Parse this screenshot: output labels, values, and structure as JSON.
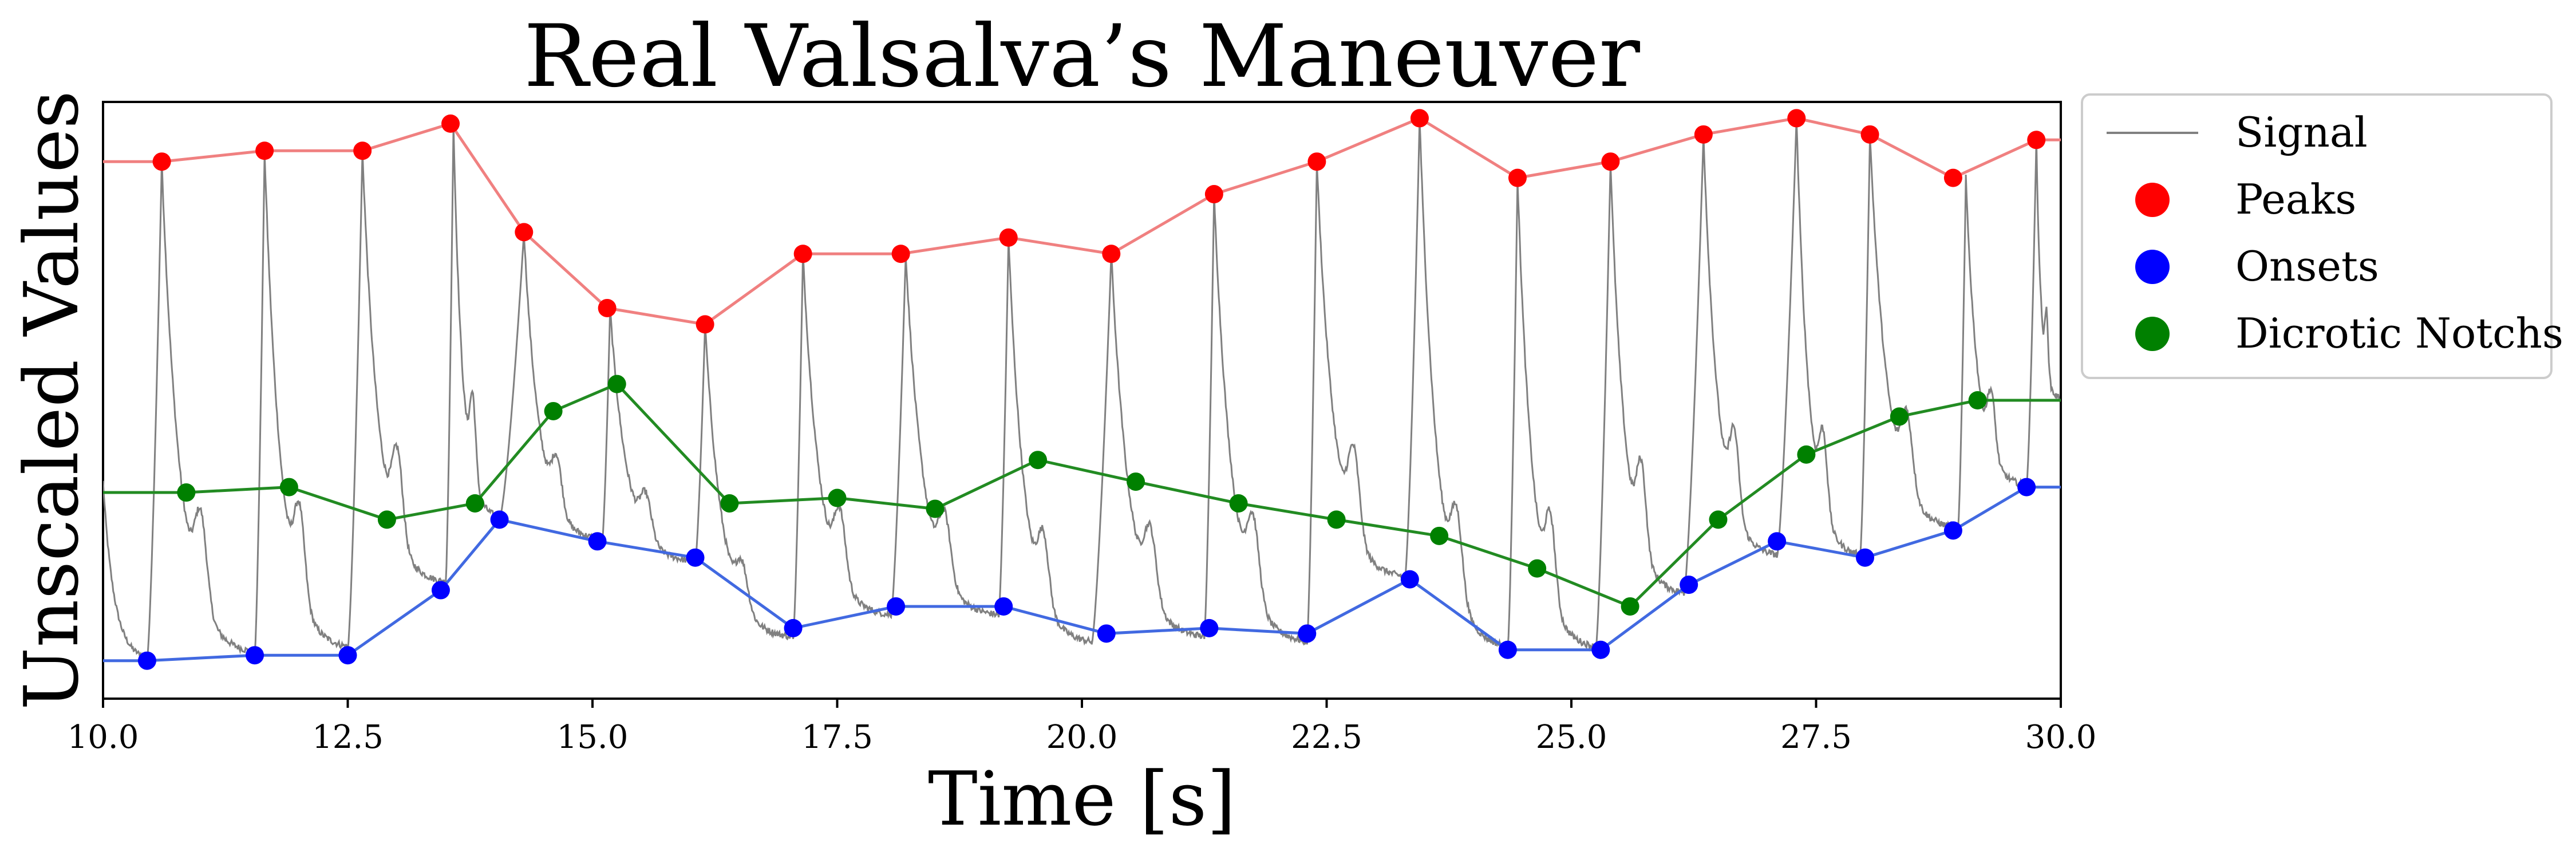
{
  "chart_data": {
    "type": "line",
    "title": "Real Valsalva’s Maneuver",
    "xlabel": "Time [s]",
    "ylabel": "Unscaled Values",
    "xlim": [
      10.0,
      30.0
    ],
    "ylim": [
      -0.05,
      1.05
    ],
    "x_ticks": [
      "10.0",
      "12.5",
      "15.0",
      "17.5",
      "20.0",
      "22.5",
      "25.0",
      "27.5",
      "30.0"
    ],
    "grid": false,
    "legend": {
      "position": "outside-top-right"
    },
    "series": [
      {
        "name": "Signal",
        "type": "line",
        "color": "#808080",
        "beats": [
          {
            "onset": 10.45,
            "peak": 10.6
          },
          {
            "onset": 11.55,
            "peak": 11.65
          },
          {
            "onset": 12.5,
            "peak": 12.65
          },
          {
            "onset": 13.5,
            "peak": 13.55
          },
          {
            "onset": 14.05,
            "peak": 14.3
          },
          {
            "onset": 15.1,
            "peak": 15.15
          },
          {
            "onset": 16.05,
            "peak": 16.15
          },
          {
            "onset": 17.05,
            "peak": 17.15
          },
          {
            "onset": 18.05,
            "peak": 18.2
          },
          {
            "onset": 19.15,
            "peak": 19.25
          },
          {
            "onset": 20.1,
            "peak": 20.3
          },
          {
            "onset": 21.25,
            "peak": 21.35
          },
          {
            "onset": 22.3,
            "peak": 22.4
          },
          {
            "onset": 23.3,
            "peak": 23.45
          },
          {
            "onset": 24.35,
            "peak": 24.45
          },
          {
            "onset": 25.25,
            "peak": 25.4
          },
          {
            "onset": 26.15,
            "peak": 26.35
          },
          {
            "onset": 27.1,
            "peak": 27.3
          },
          {
            "onset": 27.95,
            "peak": 28.05
          },
          {
            "onset": 28.95,
            "peak": 28.9
          },
          {
            "onset": 29.65,
            "peak": 29.75
          }
        ],
        "onset_values": [
          0.02,
          0.03,
          0.04,
          0.16,
          0.28,
          0.24,
          0.2,
          0.06,
          0.1,
          0.1,
          0.05,
          0.06,
          0.05,
          0.17,
          0.04,
          0.04,
          0.14,
          0.21,
          0.21,
          0.26,
          0.34
        ],
        "peak_values": [
          0.94,
          0.96,
          0.96,
          1.01,
          0.81,
          0.67,
          0.64,
          0.77,
          0.77,
          0.8,
          0.77,
          0.88,
          0.94,
          1.02,
          0.91,
          0.94,
          0.99,
          1.02,
          0.99,
          0.91,
          0.98
        ]
      },
      {
        "name": "Peaks",
        "type": "scatter+line",
        "color": "#ff0000",
        "line_color": "#f08080",
        "x": [
          10.6,
          11.65,
          12.65,
          13.55,
          14.3,
          15.15,
          16.15,
          17.15,
          18.15,
          19.25,
          20.3,
          21.35,
          22.4,
          23.45,
          24.45,
          25.4,
          26.35,
          27.3,
          28.05,
          28.9,
          29.75
        ],
        "y": [
          0.94,
          0.96,
          0.96,
          1.01,
          0.81,
          0.67,
          0.64,
          0.77,
          0.77,
          0.8,
          0.77,
          0.88,
          0.94,
          1.02,
          0.91,
          0.94,
          0.99,
          1.02,
          0.99,
          0.91,
          0.98
        ]
      },
      {
        "name": "Onsets",
        "type": "scatter+line",
        "color": "#0000ff",
        "line_color": "#4169e1",
        "x": [
          10.45,
          11.55,
          12.5,
          13.45,
          14.05,
          15.05,
          16.05,
          17.05,
          18.1,
          19.2,
          20.25,
          21.3,
          22.3,
          23.35,
          24.35,
          25.3,
          26.2,
          27.1,
          28.0,
          28.9,
          29.65
        ],
        "y": [
          0.02,
          0.03,
          0.03,
          0.15,
          0.28,
          0.24,
          0.21,
          0.08,
          0.12,
          0.12,
          0.07,
          0.08,
          0.07,
          0.17,
          0.04,
          0.04,
          0.16,
          0.24,
          0.21,
          0.26,
          0.34
        ]
      },
      {
        "name": "Dicrotic Notchs",
        "type": "scatter+line",
        "color": "#008000",
        "line_color": "#228b22",
        "x": [
          10.85,
          11.9,
          12.9,
          13.8,
          14.6,
          15.25,
          16.4,
          17.5,
          18.5,
          19.55,
          20.55,
          21.6,
          22.6,
          23.65,
          24.65,
          25.6,
          26.5,
          27.4,
          28.35,
          29.15
        ],
        "y": [
          0.33,
          0.34,
          0.28,
          0.31,
          0.48,
          0.53,
          0.31,
          0.32,
          0.3,
          0.39,
          0.35,
          0.31,
          0.28,
          0.25,
          0.19,
          0.12,
          0.28,
          0.4,
          0.47,
          0.5
        ]
      }
    ],
    "colors": {
      "signal": "#808080",
      "peaks": "#ff0000",
      "peaks_line": "#f08080",
      "onsets": "#0000ff",
      "onsets_line": "#4169e1",
      "notches": "#008000",
      "notches_line": "#228b22"
    }
  }
}
